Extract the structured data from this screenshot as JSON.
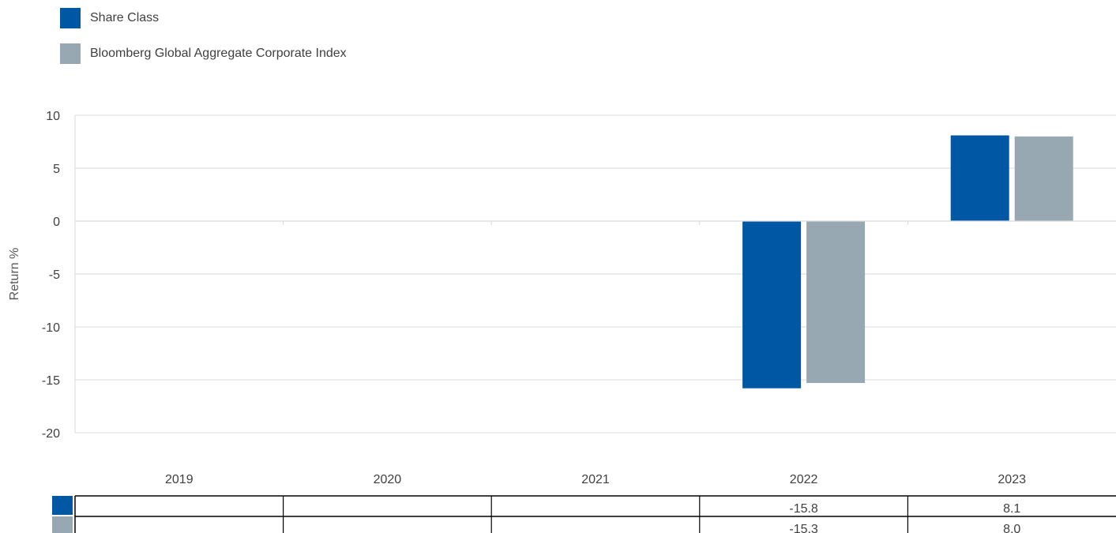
{
  "legend": {
    "items": [
      {
        "label": "Share Class",
        "color": "#0057A4"
      },
      {
        "label": "Bloomberg Global Aggregate Corporate Index",
        "color": "#98A8B3"
      }
    ]
  },
  "chart_data": {
    "type": "bar",
    "title": "",
    "xlabel": "",
    "ylabel": "Return %",
    "ylim": [
      -20,
      10
    ],
    "yticks": [
      10,
      5,
      0,
      -5,
      -10,
      -15,
      -20
    ],
    "grid": true,
    "legend_position": "top-left",
    "categories": [
      "2019",
      "2020",
      "2021",
      "2022",
      "2023"
    ],
    "series": [
      {
        "name": "Share Class",
        "color": "#0057A4",
        "values": [
          null,
          null,
          null,
          -15.8,
          8.1
        ]
      },
      {
        "name": "Bloomberg Global Aggregate Corporate Index",
        "color": "#98A8B3",
        "values": [
          null,
          null,
          null,
          -15.3,
          8.0
        ]
      }
    ],
    "table": {
      "rows": [
        [
          "",
          "",
          "",
          "-15.8",
          "8.1"
        ],
        [
          "",
          "",
          "",
          "-15.3",
          "8.0"
        ]
      ]
    }
  }
}
